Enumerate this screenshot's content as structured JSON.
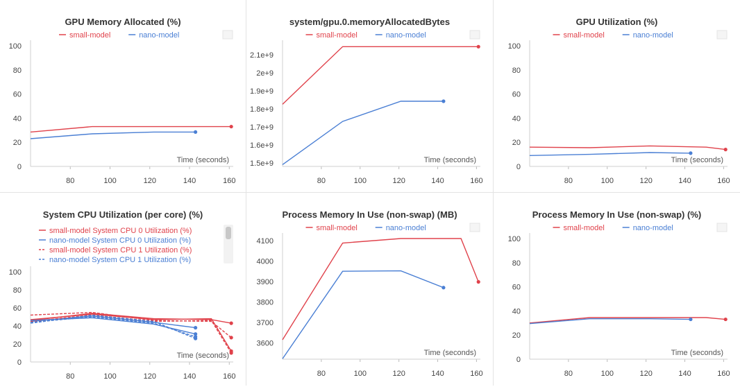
{
  "colors": {
    "small": "#e0424b",
    "nano": "#4a7fd4"
  },
  "chart_data": [
    {
      "type": "line",
      "title": "GPU Memory Allocated (%)",
      "xlabel": "Time (seconds)",
      "xlim": [
        60,
        162
      ],
      "ylim": [
        0,
        100
      ],
      "x_ticks": [
        80,
        100,
        120,
        140,
        160
      ],
      "y_ticks": [
        0,
        20,
        40,
        60,
        80,
        100
      ],
      "y_tick_labels": [
        "0",
        "20",
        "40",
        "60",
        "80",
        "100"
      ],
      "series": [
        {
          "name": "small-model",
          "color": "small",
          "dash": false,
          "points": [
            [
              60,
              28.5
            ],
            [
              91,
              33
            ],
            [
              161,
              33
            ]
          ]
        },
        {
          "name": "nano-model",
          "color": "nano",
          "dash": false,
          "points": [
            [
              60,
              23
            ],
            [
              91,
              27
            ],
            [
              122,
              28.5
            ],
            [
              143,
              28.5
            ]
          ]
        }
      ]
    },
    {
      "type": "line",
      "title": "system/gpu.0.memoryAllocatedBytes",
      "xlabel": "Time (seconds)",
      "xlim": [
        60,
        162
      ],
      "ylim": [
        1480000000,
        2150000000
      ],
      "x_ticks": [
        80,
        100,
        120,
        140,
        160
      ],
      "y_ticks": [
        1500000000,
        1600000000,
        1700000000,
        1800000000,
        1900000000,
        2000000000,
        2100000000
      ],
      "y_tick_labels": [
        "1.5e+9",
        "1.6e+9",
        "1.7e+9",
        "1.8e+9",
        "1.9e+9",
        "2e+9",
        "2.1e+9"
      ],
      "series": [
        {
          "name": "small-model",
          "color": "small",
          "dash": false,
          "points": [
            [
              60,
              1825000000
            ],
            [
              91,
              2145000000
            ],
            [
              161,
              2145000000
            ]
          ]
        },
        {
          "name": "nano-model",
          "color": "nano",
          "dash": false,
          "points": [
            [
              60,
              1490000000
            ],
            [
              91,
              1730000000
            ],
            [
              121,
              1842000000
            ],
            [
              143,
              1842000000
            ]
          ]
        }
      ]
    },
    {
      "type": "line",
      "title": "GPU Utilization (%)",
      "xlabel": "Time (seconds)",
      "xlim": [
        60,
        162
      ],
      "ylim": [
        0,
        100
      ],
      "x_ticks": [
        80,
        100,
        120,
        140,
        160
      ],
      "y_ticks": [
        0,
        20,
        40,
        60,
        80,
        100
      ],
      "y_tick_labels": [
        "0",
        "20",
        "40",
        "60",
        "80",
        "100"
      ],
      "series": [
        {
          "name": "small-model",
          "color": "small",
          "dash": false,
          "points": [
            [
              60,
              16
            ],
            [
              91,
              15.5
            ],
            [
              122,
              17
            ],
            [
              151,
              16
            ],
            [
              161,
              14
            ]
          ]
        },
        {
          "name": "nano-model",
          "color": "nano",
          "dash": false,
          "points": [
            [
              60,
              9
            ],
            [
              91,
              10
            ],
            [
              122,
              11.5
            ],
            [
              143,
              11
            ]
          ]
        }
      ]
    },
    {
      "type": "line",
      "title": "System CPU Utilization (per core) (%)",
      "xlabel": "Time (seconds)",
      "xlim": [
        60,
        162
      ],
      "ylim": [
        0,
        100
      ],
      "x_ticks": [
        80,
        100,
        120,
        140,
        160
      ],
      "y_ticks": [
        0,
        20,
        40,
        60,
        80,
        100
      ],
      "y_tick_labels": [
        "0",
        "20",
        "40",
        "60",
        "80",
        "100"
      ],
      "legend_style": "list",
      "series": [
        {
          "name": "small-model System CPU 0 Utilization (%)",
          "color": "small",
          "dash": false,
          "points": [
            [
              60,
              46
            ],
            [
              91,
              54
            ],
            [
              122,
              48
            ],
            [
              151,
              47
            ],
            [
              161,
              43
            ]
          ]
        },
        {
          "name": "nano-model System CPU 0 Utilization (%)",
          "color": "nano",
          "dash": false,
          "points": [
            [
              60,
              45
            ],
            [
              91,
              51
            ],
            [
              122,
              44
            ],
            [
              143,
              38
            ]
          ]
        },
        {
          "name": "small-model System CPU 1 Utilization (%)",
          "color": "small",
          "dash": true,
          "points": [
            [
              60,
              52
            ],
            [
              91,
              55
            ],
            [
              122,
              46
            ],
            [
              151,
              45
            ],
            [
              161,
              27
            ]
          ]
        },
        {
          "name": "nano-model System CPU 1 Utilization (%)",
          "color": "nano",
          "dash": true,
          "points": [
            [
              60,
              44
            ],
            [
              91,
              50
            ],
            [
              122,
              43
            ],
            [
              143,
              28
            ]
          ]
        },
        {
          "name": "",
          "color": "small",
          "dash": false,
          "legend": false,
          "points": [
            [
              60,
              47
            ],
            [
              91,
              53
            ],
            [
              122,
              47
            ],
            [
              151,
              48
            ],
            [
              161,
              12
            ]
          ]
        },
        {
          "name": "",
          "color": "small",
          "dash": true,
          "legend": false,
          "points": [
            [
              60,
              45
            ],
            [
              91,
              52
            ],
            [
              122,
              45
            ],
            [
              151,
              46
            ],
            [
              161,
              10
            ]
          ]
        },
        {
          "name": "",
          "color": "nano",
          "dash": false,
          "legend": false,
          "points": [
            [
              60,
              46
            ],
            [
              91,
              49
            ],
            [
              122,
              42
            ],
            [
              143,
              31
            ]
          ]
        },
        {
          "name": "",
          "color": "nano",
          "dash": true,
          "legend": false,
          "points": [
            [
              60,
              43
            ],
            [
              91,
              52
            ],
            [
              122,
              45
            ],
            [
              143,
              26
            ]
          ]
        }
      ]
    },
    {
      "type": "line",
      "title": "Process Memory In Use (non-swap) (MB)",
      "xlabel": "Time (seconds)",
      "xlim": [
        60,
        162
      ],
      "ylim": [
        3520,
        4110
      ],
      "x_ticks": [
        80,
        100,
        120,
        140,
        160
      ],
      "y_ticks": [
        3600,
        3700,
        3800,
        3900,
        4000,
        4100
      ],
      "y_tick_labels": [
        "3600",
        "3700",
        "3800",
        "3900",
        "4000",
        "4100"
      ],
      "series": [
        {
          "name": "small-model",
          "color": "small",
          "dash": false,
          "points": [
            [
              60,
              3615
            ],
            [
              91,
              4088
            ],
            [
              121,
              4110
            ],
            [
              152,
              4110
            ],
            [
              161,
              3898
            ]
          ]
        },
        {
          "name": "nano-model",
          "color": "nano",
          "dash": false,
          "points": [
            [
              60,
              3522
            ],
            [
              91,
              3950
            ],
            [
              121,
              3952
            ],
            [
              143,
              3870
            ]
          ]
        }
      ]
    },
    {
      "type": "line",
      "title": "Process Memory In Use (non-swap) (%)",
      "xlabel": "Time (seconds)",
      "xlim": [
        60,
        162
      ],
      "ylim": [
        0,
        100
      ],
      "x_ticks": [
        80,
        100,
        120,
        140,
        160
      ],
      "y_ticks": [
        0,
        20,
        40,
        60,
        80,
        100
      ],
      "y_tick_labels": [
        "0",
        "20",
        "40",
        "60",
        "80",
        "100"
      ],
      "series": [
        {
          "name": "small-model",
          "color": "small",
          "dash": false,
          "points": [
            [
              60,
              30
            ],
            [
              91,
              34.5
            ],
            [
              151,
              34.5
            ],
            [
              161,
              33
            ]
          ]
        },
        {
          "name": "nano-model",
          "color": "nano",
          "dash": false,
          "points": [
            [
              60,
              29.5
            ],
            [
              91,
              33.5
            ],
            [
              122,
              33.5
            ],
            [
              143,
              33
            ]
          ]
        }
      ]
    }
  ]
}
